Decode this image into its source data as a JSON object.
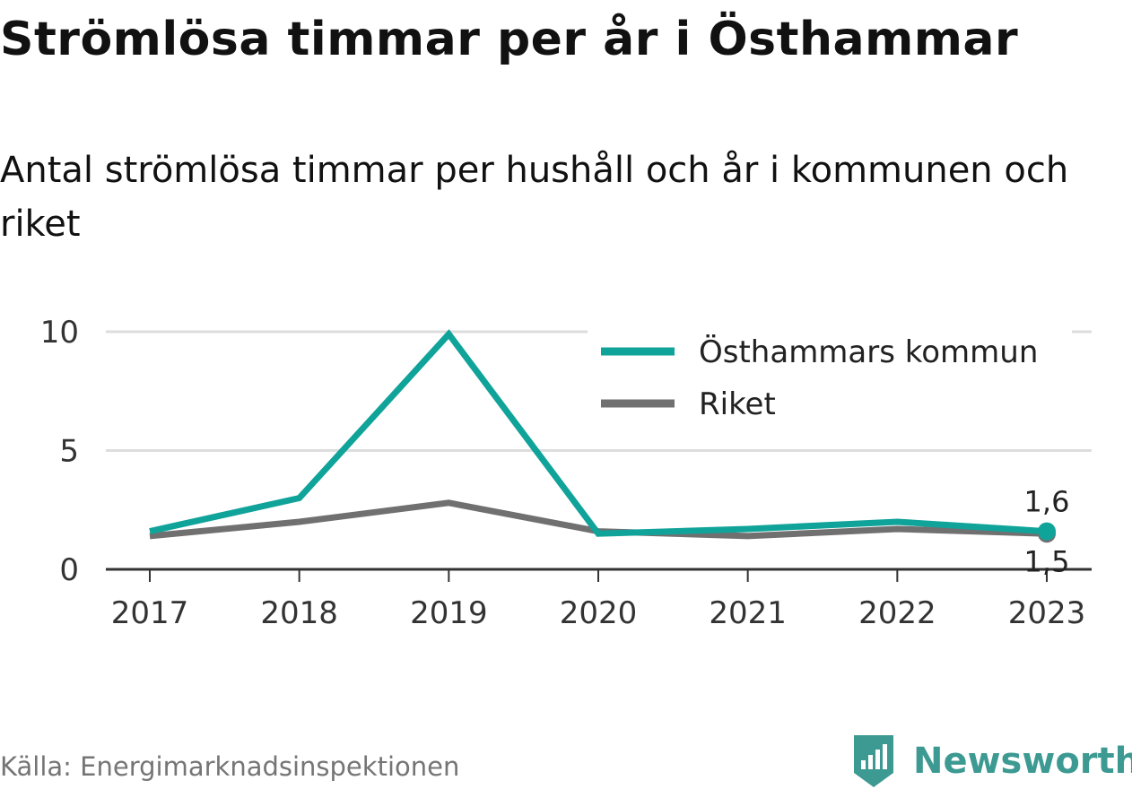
{
  "title": "Strömlösa timmar per år i Östhammar",
  "subtitle": "Antal strömlösa timmar per hushåll och år i kommunen och riket",
  "source": "Källa: Energimarknadsinspektionen",
  "brand": {
    "name": "Newsworthy",
    "icon": "newsworthy-logo-icon",
    "color": "#3d9a92"
  },
  "chart_data": {
    "type": "line",
    "x": [
      "2017",
      "2018",
      "2019",
      "2020",
      "2021",
      "2022",
      "2023"
    ],
    "ylim": [
      0,
      10
    ],
    "yticks": [
      "0",
      "5",
      "10"
    ],
    "grid": true,
    "legend": "top-right",
    "series": [
      {
        "name": "Östhammars kommun",
        "color": "#10a39a",
        "values": [
          1.6,
          3.0,
          9.9,
          1.5,
          1.7,
          2.0,
          1.6
        ],
        "end_label": "1,6"
      },
      {
        "name": "Riket",
        "color": "#707070",
        "values": [
          1.4,
          2.0,
          2.8,
          1.6,
          1.4,
          1.7,
          1.5
        ],
        "end_label": "1,5"
      }
    ]
  }
}
